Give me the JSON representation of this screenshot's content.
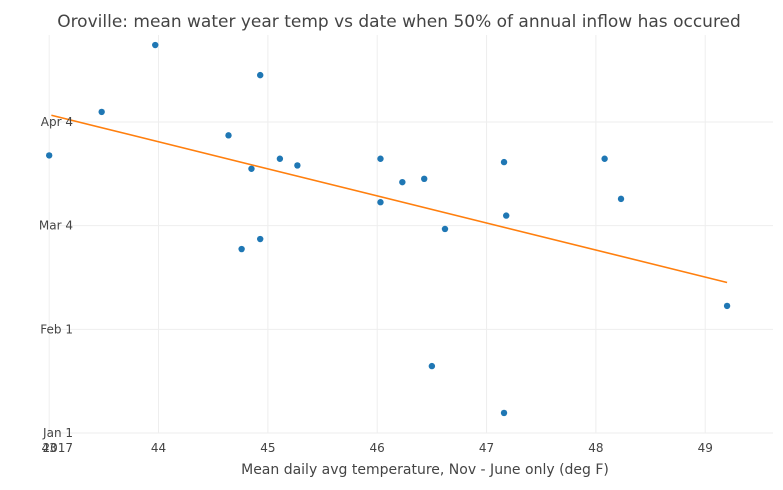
{
  "chart_data": {
    "type": "scatter",
    "title": "Oroville: mean water year temp vs date when 50% of annual inflow has occured",
    "xlabel": "Mean daily avg temperature, Nov - June only (deg F)",
    "ylabel": "",
    "xlim": [
      42.98,
      49.62
    ],
    "ylim": [
      "2017-01-01",
      "2017-04-30"
    ],
    "grid": true,
    "legend": "none",
    "x_ticks": [
      "43",
      "44",
      "45",
      "46",
      "47",
      "48",
      "49"
    ],
    "y_ticks": [
      {
        "date": "2017-01-01",
        "label": "Jan 1",
        "sublabel": "2017"
      },
      {
        "date": "2017-02-01",
        "label": "Feb 1",
        "sublabel": ""
      },
      {
        "date": "2017-03-04",
        "label": "Mar 4",
        "sublabel": ""
      },
      {
        "date": "2017-04-04",
        "label": "Apr 4",
        "sublabel": ""
      }
    ],
    "series": [
      {
        "marker_color": "#1f77b4",
        "points": [
          {
            "x": 43.0,
            "y": "2017-03-25"
          },
          {
            "x": 43.48,
            "y": "2017-04-07"
          },
          {
            "x": 43.97,
            "y": "2017-04-27"
          },
          {
            "x": 44.64,
            "y": "2017-03-31"
          },
          {
            "x": 44.76,
            "y": "2017-02-25"
          },
          {
            "x": 44.85,
            "y": "2017-03-21"
          },
          {
            "x": 44.93,
            "y": "2017-04-18"
          },
          {
            "x": 44.93,
            "y": "2017-02-28"
          },
          {
            "x": 45.11,
            "y": "2017-03-24"
          },
          {
            "x": 45.27,
            "y": "2017-03-22"
          },
          {
            "x": 46.03,
            "y": "2017-03-24"
          },
          {
            "x": 46.03,
            "y": "2017-03-11"
          },
          {
            "x": 46.23,
            "y": "2017-03-17"
          },
          {
            "x": 46.43,
            "y": "2017-03-18"
          },
          {
            "x": 46.5,
            "y": "2017-01-21"
          },
          {
            "x": 46.62,
            "y": "2017-03-03"
          },
          {
            "x": 47.16,
            "y": "2017-03-23"
          },
          {
            "x": 47.16,
            "y": "2017-01-07"
          },
          {
            "x": 47.18,
            "y": "2017-03-07"
          },
          {
            "x": 48.08,
            "y": "2017-03-24"
          },
          {
            "x": 48.23,
            "y": "2017-03-12"
          },
          {
            "x": 49.2,
            "y": "2017-02-08"
          }
        ]
      },
      {
        "line_color": "#ff7f0e",
        "type": "line",
        "points": [
          {
            "x": 43.02,
            "y": "2017-04-06"
          },
          {
            "x": 49.2,
            "y": "2017-02-15"
          }
        ]
      }
    ]
  }
}
